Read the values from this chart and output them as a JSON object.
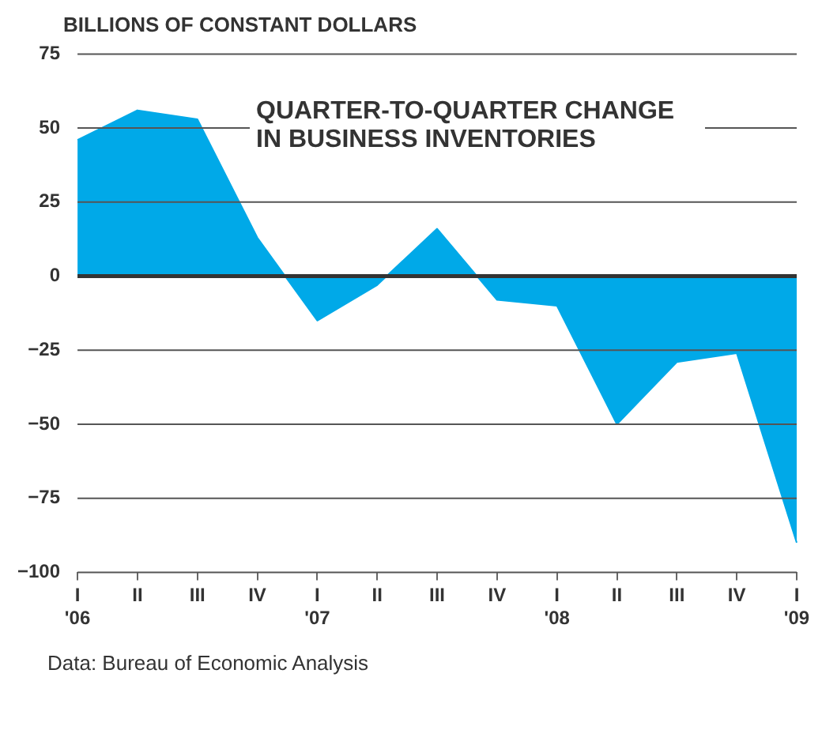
{
  "chart_data": {
    "type": "area",
    "title": "QUARTER-TO-QUARTER CHANGE IN BUSINESS INVENTORIES",
    "ylabel": "BILLIONS OF CONSTANT DOLLARS",
    "categories": [
      "I\n'06",
      "II",
      "III",
      "IV",
      "I\n'07",
      "II",
      "III",
      "IV",
      "I\n'08",
      "II",
      "III",
      "IV",
      "I\n'09"
    ],
    "values": [
      46,
      56,
      53,
      13,
      -15,
      -3,
      16,
      -8,
      -10,
      -50,
      -29,
      -26,
      -90
    ],
    "color": "#00a9e8",
    "ylim": [
      -100,
      75
    ],
    "yticks": [
      -100,
      -75,
      -50,
      -25,
      0,
      25,
      50,
      75
    ],
    "grid": "y",
    "legend": false,
    "annotations": [
      "Data: Bureau of Economic Analysis"
    ]
  }
}
